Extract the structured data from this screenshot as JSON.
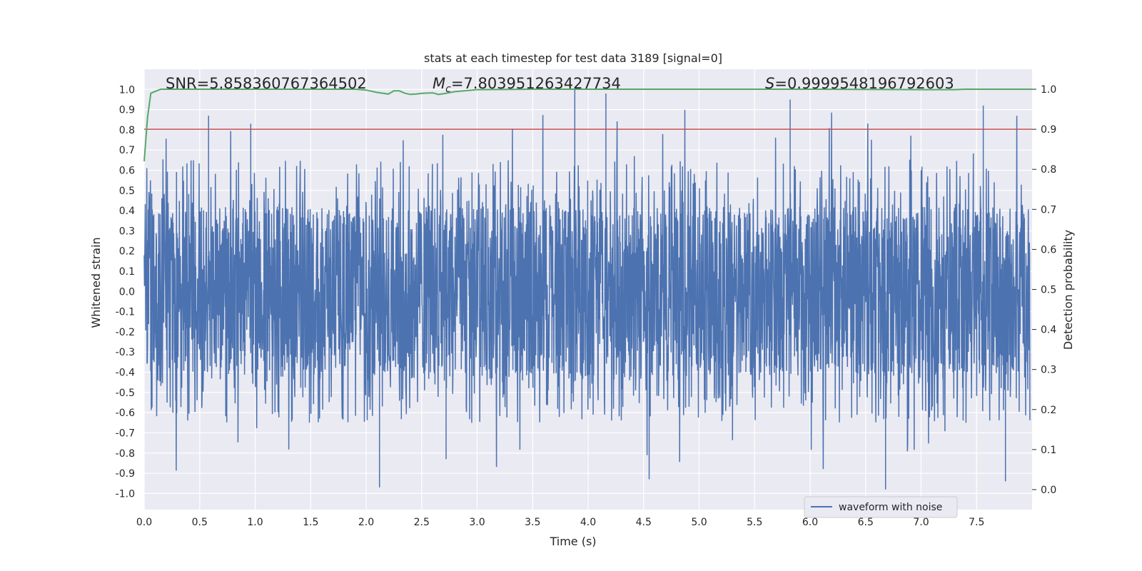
{
  "chart_data": {
    "type": "line",
    "title": "stats at each timestep for test data 3189 [signal=0]",
    "xlabel": "Time (s)",
    "ylabel_left": "Whitened strain",
    "ylabel_right": "Detection probability",
    "xlim": [
      0.0,
      8.0
    ],
    "ylim_left": [
      -1.08,
      1.1
    ],
    "ylim_right": [
      -0.05,
      1.05
    ],
    "xticks": [
      "0.0",
      "0.5",
      "1.0",
      "1.5",
      "2.0",
      "2.5",
      "3.0",
      "3.5",
      "4.0",
      "4.5",
      "5.0",
      "5.5",
      "6.0",
      "6.5",
      "7.0",
      "7.5"
    ],
    "yticks_left": [
      "1.0",
      "0.9",
      "0.8",
      "0.7",
      "0.6",
      "0.5",
      "0.4",
      "0.3",
      "0.2",
      "0.1",
      "0.0",
      "-0.1",
      "-0.2",
      "-0.3",
      "-0.4",
      "-0.5",
      "-0.6",
      "-0.7",
      "-0.8",
      "-0.9",
      "-1.0"
    ],
    "yticks_right": [
      "1.0",
      "0.9",
      "0.8",
      "0.7",
      "0.6",
      "0.5",
      "0.4",
      "0.3",
      "0.2",
      "0.1",
      "0.0"
    ],
    "annotations": {
      "snr": "SNR=5.858360767364502",
      "mc_symbol": "M",
      "mc_subscript": "c",
      "mc_value": "=7.803951263427734",
      "s_symbol": "S",
      "s_value": "=0.9999548196792603"
    },
    "threshold": {
      "name": "threshold",
      "value": 0.9,
      "color": "#c44e52"
    },
    "series": [
      {
        "name": "waveform with noise",
        "axis": "left",
        "color": "#4c72b0",
        "sample_rate_hz": 2048,
        "duration_s": 8.0,
        "amplitude_envelope": {
          "typical_max": 0.5,
          "peak_max": 1.0,
          "peak_min": -0.97
        }
      },
      {
        "name": "detection probability",
        "axis": "right",
        "color": "#55a868",
        "x": [
          0.0,
          0.03,
          0.06,
          0.1,
          0.15,
          0.2,
          0.5,
          1.0,
          1.5,
          1.9,
          2.0,
          2.1,
          2.2,
          2.25,
          2.3,
          2.35,
          2.4,
          2.45,
          2.5,
          2.6,
          2.65,
          2.7,
          2.8,
          3.0,
          3.5,
          4.0,
          5.0,
          6.0,
          7.0,
          7.2,
          7.3,
          7.4,
          7.5,
          8.0
        ],
        "y": [
          0.82,
          0.93,
          0.99,
          0.995,
          1.0,
          1.0,
          1.0,
          1.0,
          1.0,
          1.0,
          0.998,
          0.992,
          0.988,
          0.996,
          0.996,
          0.99,
          0.987,
          0.988,
          0.99,
          0.991,
          0.987,
          0.989,
          0.994,
          0.999,
          1.0,
          1.0,
          1.0,
          1.0,
          0.999,
          0.999,
          0.999,
          1.0,
          1.0,
          1.0
        ]
      }
    ],
    "legend": {
      "entries": [
        "waveform with noise"
      ],
      "location": "lower-right"
    }
  }
}
